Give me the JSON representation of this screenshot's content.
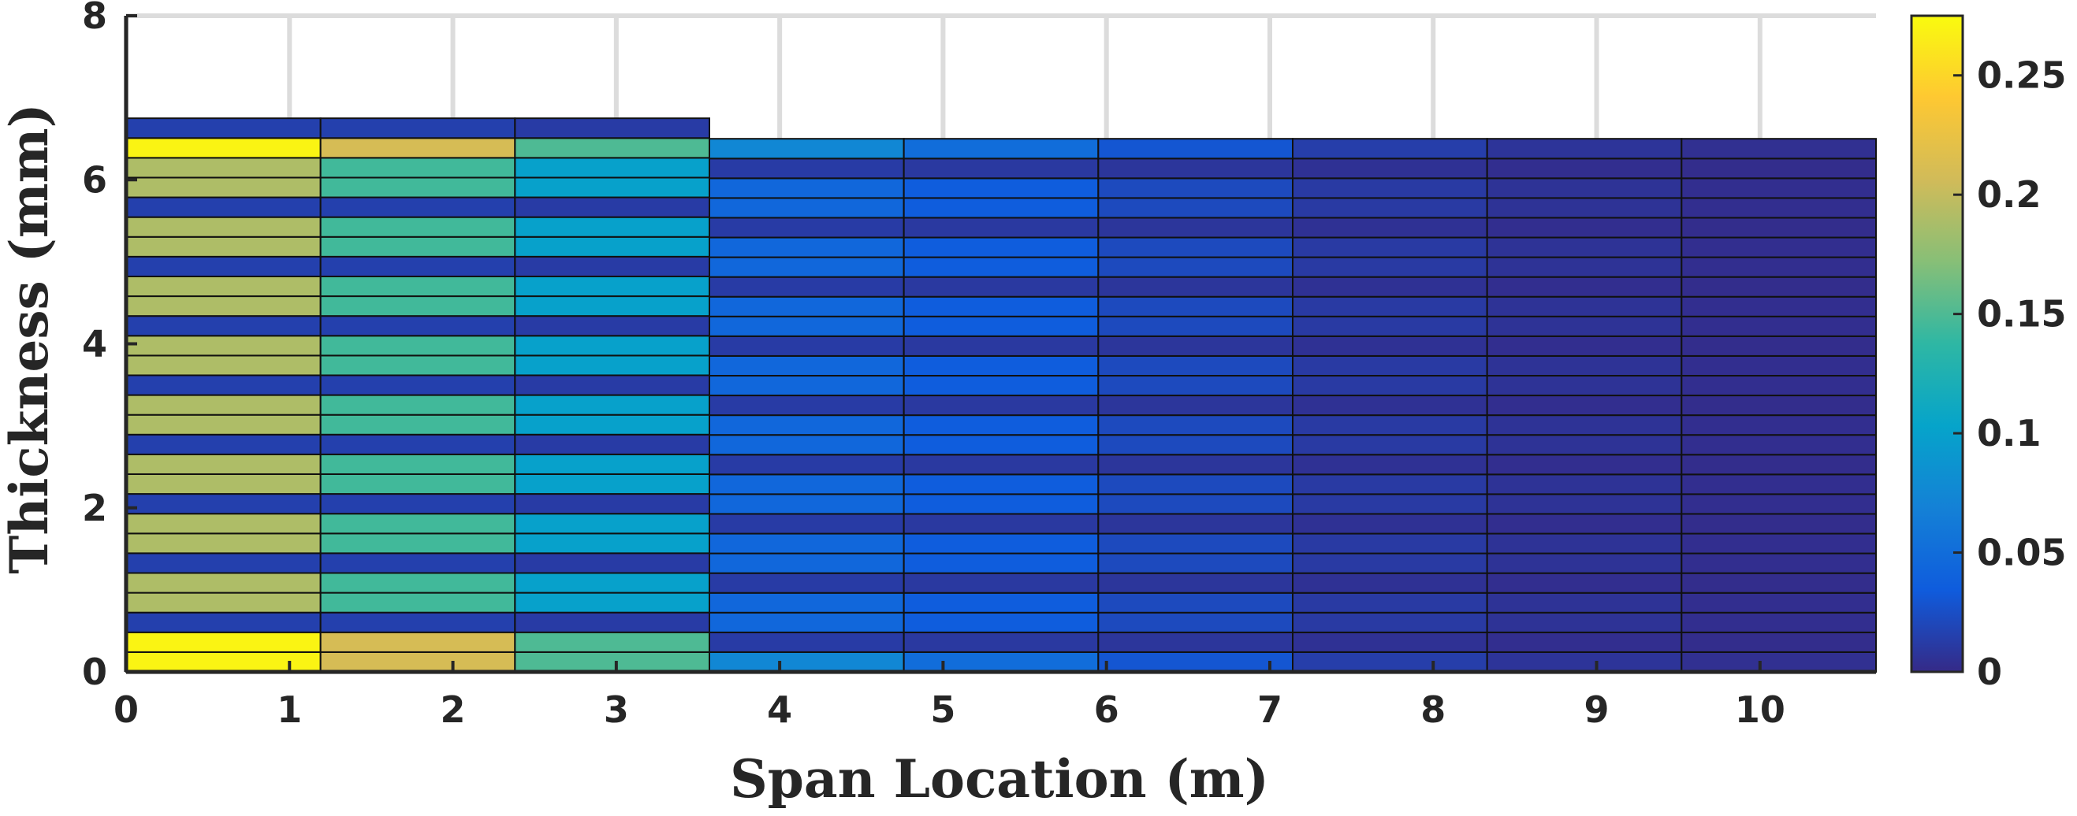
{
  "chart_data": {
    "type": "heatmap",
    "title": "",
    "xlabel": "Span Location (m)",
    "ylabel": "Thickness (mm)",
    "xlim": [
      0,
      10.71
    ],
    "ylim": [
      0,
      8
    ],
    "x_ticks": [
      0,
      1,
      2,
      3,
      4,
      5,
      6,
      7,
      8,
      9,
      10
    ],
    "y_ticks": [
      0,
      2,
      4,
      6,
      8
    ],
    "colorbar": {
      "range": [
        0,
        0.275
      ],
      "ticks": [
        0,
        0.05,
        0.1,
        0.15,
        0.2,
        0.25
      ],
      "tick_labels": [
        "0",
        "0.05",
        "0.1",
        "0.15",
        "0.2",
        "0.25"
      ],
      "colormap": "parula",
      "stops": [
        "#352a87",
        "#0f5cdd",
        "#1481d6",
        "#06a4ca",
        "#2eb7a4",
        "#87bf77",
        "#d1bb59",
        "#fec832",
        "#f9fb0e"
      ]
    },
    "grid": true,
    "segments": [
      {
        "x_start": 0.0,
        "x_end": 1.19,
        "total_thickness": 6.75,
        "layer_values": [
          0.27,
          0.27,
          0.015,
          0.19,
          0.19,
          0.015,
          0.19,
          0.19,
          0.015,
          0.19,
          0.19,
          0.015,
          0.19,
          0.19,
          0.015,
          0.19,
          0.19,
          0.015,
          0.19,
          0.19,
          0.015,
          0.19,
          0.19,
          0.015,
          0.19,
          0.19,
          0.27,
          0.015
        ]
      },
      {
        "x_start": 1.19,
        "x_end": 2.38,
        "total_thickness": 6.75,
        "layer_values": [
          0.21,
          0.21,
          0.015,
          0.145,
          0.145,
          0.015,
          0.145,
          0.145,
          0.015,
          0.145,
          0.145,
          0.015,
          0.145,
          0.145,
          0.015,
          0.145,
          0.145,
          0.015,
          0.145,
          0.145,
          0.015,
          0.145,
          0.145,
          0.015,
          0.145,
          0.145,
          0.21,
          0.015
        ]
      },
      {
        "x_start": 2.38,
        "x_end": 3.57,
        "total_thickness": 6.75,
        "layer_values": [
          0.15,
          0.15,
          0.012,
          0.1,
          0.1,
          0.012,
          0.1,
          0.1,
          0.012,
          0.1,
          0.1,
          0.012,
          0.1,
          0.1,
          0.012,
          0.1,
          0.1,
          0.012,
          0.1,
          0.1,
          0.012,
          0.1,
          0.1,
          0.012,
          0.1,
          0.1,
          0.15,
          0.012
        ]
      },
      {
        "x_start": 3.57,
        "x_end": 4.76,
        "total_thickness": 6.5,
        "layer_values": [
          0.075,
          0.012,
          0.045,
          0.045,
          0.012,
          0.045,
          0.045,
          0.012,
          0.045,
          0.045,
          0.012,
          0.045,
          0.045,
          0.012,
          0.045,
          0.045,
          0.012,
          0.045,
          0.045,
          0.012,
          0.045,
          0.045,
          0.012,
          0.045,
          0.045,
          0.012,
          0.075
        ]
      },
      {
        "x_start": 4.76,
        "x_end": 5.95,
        "total_thickness": 6.5,
        "layer_values": [
          0.05,
          0.01,
          0.035,
          0.035,
          0.01,
          0.035,
          0.035,
          0.01,
          0.035,
          0.035,
          0.01,
          0.035,
          0.035,
          0.01,
          0.035,
          0.035,
          0.01,
          0.035,
          0.035,
          0.01,
          0.035,
          0.035,
          0.01,
          0.035,
          0.035,
          0.01,
          0.05
        ]
      },
      {
        "x_start": 5.95,
        "x_end": 7.14,
        "total_thickness": 6.5,
        "layer_values": [
          0.03,
          0.008,
          0.022,
          0.022,
          0.008,
          0.022,
          0.022,
          0.008,
          0.022,
          0.022,
          0.008,
          0.022,
          0.022,
          0.008,
          0.022,
          0.022,
          0.008,
          0.022,
          0.022,
          0.008,
          0.022,
          0.022,
          0.008,
          0.022,
          0.022,
          0.008,
          0.03
        ]
      },
      {
        "x_start": 7.14,
        "x_end": 8.33,
        "total_thickness": 6.5,
        "layer_values": [
          0.014,
          0.005,
          0.011,
          0.011,
          0.005,
          0.011,
          0.011,
          0.005,
          0.011,
          0.011,
          0.005,
          0.011,
          0.011,
          0.005,
          0.011,
          0.011,
          0.005,
          0.011,
          0.011,
          0.005,
          0.011,
          0.011,
          0.005,
          0.011,
          0.011,
          0.005,
          0.014
        ]
      },
      {
        "x_start": 8.33,
        "x_end": 9.52,
        "total_thickness": 6.5,
        "layer_values": [
          0.007,
          0.003,
          0.006,
          0.006,
          0.003,
          0.006,
          0.006,
          0.003,
          0.006,
          0.006,
          0.003,
          0.006,
          0.006,
          0.003,
          0.006,
          0.006,
          0.003,
          0.006,
          0.006,
          0.003,
          0.006,
          0.006,
          0.003,
          0.006,
          0.006,
          0.003,
          0.007
        ]
      },
      {
        "x_start": 9.52,
        "x_end": 10.71,
        "total_thickness": 6.5,
        "layer_values": [
          0.004,
          0.002,
          0.003,
          0.003,
          0.002,
          0.003,
          0.003,
          0.002,
          0.003,
          0.003,
          0.002,
          0.003,
          0.003,
          0.002,
          0.003,
          0.003,
          0.002,
          0.003,
          0.003,
          0.002,
          0.003,
          0.003,
          0.002,
          0.003,
          0.003,
          0.002,
          0.004
        ]
      }
    ]
  }
}
